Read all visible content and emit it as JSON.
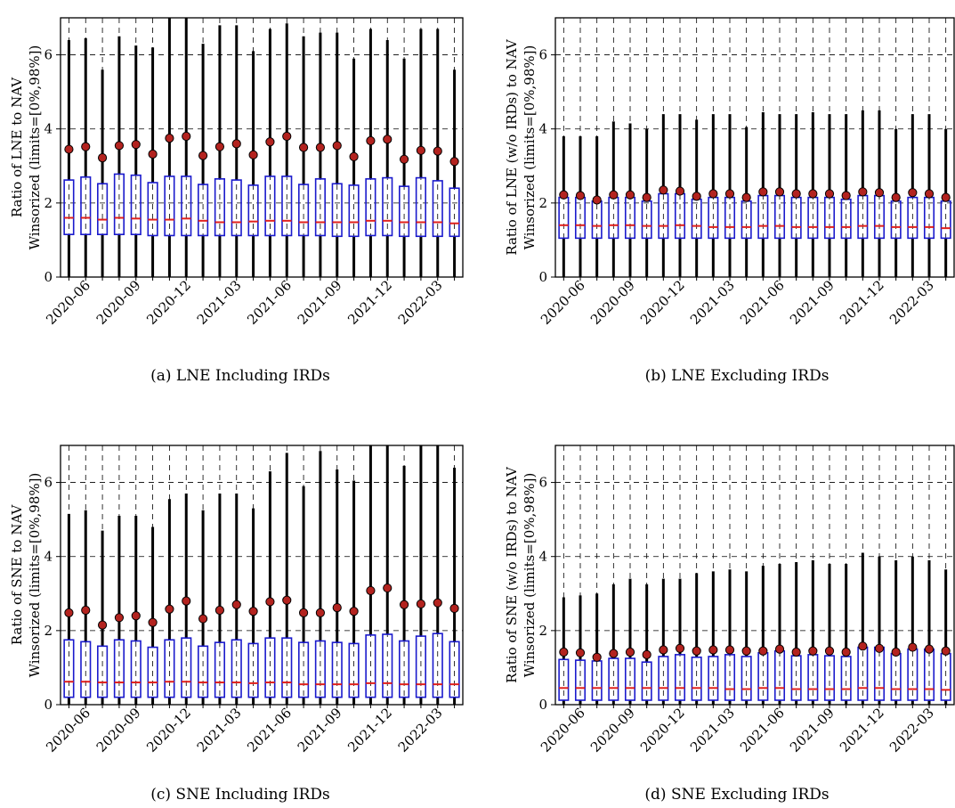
{
  "chart_data": [
    {
      "id": "a",
      "type": "box",
      "caption": "(a) LNE Including IRDs",
      "ylabel_line1": "Ratio of LNE to NAV",
      "ylabel_line2": "Winsorized (limits=[0%,98%])",
      "ylim": [
        0,
        7
      ],
      "yticks": [
        0,
        2,
        4,
        6
      ],
      "xtick_labels": [
        "2020-06",
        "2020-09",
        "2020-12",
        "2021-03",
        "2021-06",
        "2021-09",
        "2021-12",
        "2022-03"
      ],
      "xtick_index": [
        1,
        4,
        7,
        10,
        13,
        16,
        19,
        22
      ],
      "periods": [
        "2020-05",
        "2020-06",
        "2020-07",
        "2020-08",
        "2020-09",
        "2020-10",
        "2020-11",
        "2020-12",
        "2021-01",
        "2021-02",
        "2021-03",
        "2021-04",
        "2021-05",
        "2021-06",
        "2021-07",
        "2021-08",
        "2021-09",
        "2021-10",
        "2021-11",
        "2021-12",
        "2022-01",
        "2022-02",
        "2022-03",
        "2022-04"
      ],
      "q1": [
        1.15,
        1.15,
        1.15,
        1.15,
        1.15,
        1.12,
        1.12,
        1.12,
        1.12,
        1.12,
        1.12,
        1.12,
        1.12,
        1.12,
        1.12,
        1.12,
        1.1,
        1.1,
        1.12,
        1.12,
        1.1,
        1.1,
        1.1,
        1.1
      ],
      "median": [
        1.6,
        1.6,
        1.55,
        1.6,
        1.58,
        1.55,
        1.55,
        1.58,
        1.52,
        1.48,
        1.48,
        1.5,
        1.52,
        1.52,
        1.48,
        1.48,
        1.48,
        1.48,
        1.52,
        1.52,
        1.48,
        1.48,
        1.48,
        1.45
      ],
      "q3": [
        2.62,
        2.7,
        2.52,
        2.78,
        2.75,
        2.55,
        2.72,
        2.72,
        2.5,
        2.65,
        2.62,
        2.48,
        2.72,
        2.72,
        2.5,
        2.65,
        2.52,
        2.48,
        2.65,
        2.68,
        2.45,
        2.68,
        2.6,
        2.4
      ],
      "whisker_high": [
        6.4,
        6.45,
        5.6,
        6.5,
        6.25,
        6.2,
        7.0,
        7.0,
        6.3,
        6.8,
        6.8,
        6.1,
        6.7,
        6.85,
        6.5,
        6.6,
        6.6,
        5.9,
        6.7,
        6.4,
        5.9,
        6.7,
        6.7,
        5.6
      ],
      "mean": [
        3.45,
        3.52,
        3.22,
        3.55,
        3.58,
        3.32,
        3.75,
        3.8,
        3.28,
        3.52,
        3.6,
        3.3,
        3.65,
        3.8,
        3.5,
        3.5,
        3.55,
        3.25,
        3.68,
        3.72,
        3.18,
        3.42,
        3.4,
        3.12
      ]
    },
    {
      "id": "b",
      "type": "box",
      "caption": "(b) LNE Excluding IRDs",
      "ylabel_line1": "Ratio of LNE (w/o IRDs) to NAV",
      "ylabel_line2": "Winsorized (limits=[0%,98%])",
      "ylim": [
        0,
        7
      ],
      "yticks": [
        0,
        2,
        4,
        6
      ],
      "xtick_labels": [
        "2020-06",
        "2020-09",
        "2020-12",
        "2021-03",
        "2021-06",
        "2021-09",
        "2021-12",
        "2022-03"
      ],
      "xtick_index": [
        1,
        4,
        7,
        10,
        13,
        16,
        19,
        22
      ],
      "periods": [
        "2020-05",
        "2020-06",
        "2020-07",
        "2020-08",
        "2020-09",
        "2020-10",
        "2020-11",
        "2020-12",
        "2021-01",
        "2021-02",
        "2021-03",
        "2021-04",
        "2021-05",
        "2021-06",
        "2021-07",
        "2021-08",
        "2021-09",
        "2021-10",
        "2021-11",
        "2021-12",
        "2022-01",
        "2022-02",
        "2022-03",
        "2022-04"
      ],
      "q1": [
        1.05,
        1.05,
        1.05,
        1.05,
        1.05,
        1.05,
        1.05,
        1.05,
        1.05,
        1.05,
        1.05,
        1.05,
        1.05,
        1.05,
        1.05,
        1.05,
        1.05,
        1.05,
        1.05,
        1.05,
        1.05,
        1.05,
        1.05,
        1.05
      ],
      "median": [
        1.4,
        1.4,
        1.38,
        1.4,
        1.4,
        1.38,
        1.38,
        1.4,
        1.38,
        1.35,
        1.35,
        1.35,
        1.38,
        1.38,
        1.35,
        1.35,
        1.35,
        1.35,
        1.38,
        1.38,
        1.35,
        1.35,
        1.35,
        1.32
      ],
      "q3": [
        2.15,
        2.15,
        2.05,
        2.15,
        2.15,
        2.05,
        2.25,
        2.25,
        2.1,
        2.15,
        2.15,
        2.05,
        2.2,
        2.2,
        2.15,
        2.15,
        2.15,
        2.1,
        2.2,
        2.2,
        2.05,
        2.15,
        2.15,
        2.05
      ],
      "whisker_high": [
        3.8,
        3.8,
        3.8,
        4.2,
        4.15,
        4.0,
        4.4,
        4.4,
        4.25,
        4.4,
        4.4,
        4.05,
        4.45,
        4.4,
        4.4,
        4.45,
        4.4,
        4.4,
        4.5,
        4.5,
        4.0,
        4.4,
        4.4,
        4.0
      ],
      "mean": [
        2.22,
        2.2,
        2.08,
        2.22,
        2.22,
        2.15,
        2.35,
        2.32,
        2.18,
        2.25,
        2.25,
        2.15,
        2.3,
        2.3,
        2.25,
        2.25,
        2.25,
        2.2,
        2.3,
        2.28,
        2.15,
        2.28,
        2.25,
        2.15
      ]
    },
    {
      "id": "c",
      "type": "box",
      "caption": "(c) SNE Including IRDs",
      "ylabel_line1": "Ratio of SNE to NAV",
      "ylabel_line2": "Winsorized (limits=[0%,98%])",
      "ylim": [
        0,
        7
      ],
      "yticks": [
        0,
        2,
        4,
        6
      ],
      "xtick_labels": [
        "2020-06",
        "2020-09",
        "2020-12",
        "2021-03",
        "2021-06",
        "2021-09",
        "2021-12",
        "2022-03"
      ],
      "xtick_index": [
        1,
        4,
        7,
        10,
        13,
        16,
        19,
        22
      ],
      "periods": [
        "2020-05",
        "2020-06",
        "2020-07",
        "2020-08",
        "2020-09",
        "2020-10",
        "2020-11",
        "2020-12",
        "2021-01",
        "2021-02",
        "2021-03",
        "2021-04",
        "2021-05",
        "2021-06",
        "2021-07",
        "2021-08",
        "2021-09",
        "2021-10",
        "2021-11",
        "2021-12",
        "2022-01",
        "2022-02",
        "2022-03",
        "2022-04"
      ],
      "q1": [
        0.2,
        0.2,
        0.2,
        0.2,
        0.2,
        0.2,
        0.2,
        0.2,
        0.2,
        0.2,
        0.2,
        0.2,
        0.2,
        0.2,
        0.2,
        0.2,
        0.2,
        0.2,
        0.2,
        0.2,
        0.2,
        0.2,
        0.2,
        0.2
      ],
      "median": [
        0.62,
        0.62,
        0.6,
        0.6,
        0.6,
        0.6,
        0.62,
        0.62,
        0.6,
        0.6,
        0.6,
        0.58,
        0.6,
        0.6,
        0.55,
        0.55,
        0.55,
        0.55,
        0.58,
        0.58,
        0.55,
        0.55,
        0.55,
        0.55
      ],
      "q3": [
        1.75,
        1.7,
        1.58,
        1.75,
        1.72,
        1.55,
        1.75,
        1.8,
        1.58,
        1.68,
        1.75,
        1.65,
        1.8,
        1.8,
        1.68,
        1.72,
        1.68,
        1.65,
        1.88,
        1.9,
        1.72,
        1.85,
        1.92,
        1.7
      ],
      "whisker_high": [
        5.15,
        5.25,
        4.7,
        5.1,
        5.1,
        4.8,
        5.55,
        5.7,
        5.25,
        5.7,
        5.7,
        5.3,
        6.3,
        6.8,
        5.9,
        6.85,
        6.35,
        6.05,
        7.0,
        7.0,
        6.45,
        7.0,
        7.0,
        6.4
      ],
      "mean": [
        2.48,
        2.55,
        2.15,
        2.35,
        2.4,
        2.22,
        2.58,
        2.8,
        2.32,
        2.55,
        2.7,
        2.52,
        2.78,
        2.82,
        2.48,
        2.48,
        2.62,
        2.52,
        3.08,
        3.15,
        2.7,
        2.72,
        2.75,
        2.6
      ]
    },
    {
      "id": "d",
      "type": "box",
      "caption": "(d) SNE Excluding IRDs",
      "ylabel_line1": "Ratio of SNE (w/o IRDs) to NAV",
      "ylabel_line2": "Winsorized (limits=[0%,98%])",
      "ylim": [
        0,
        7
      ],
      "yticks": [
        0,
        2,
        4,
        6
      ],
      "xtick_labels": [
        "2020-06",
        "2020-09",
        "2020-12",
        "2021-03",
        "2021-06",
        "2021-09",
        "2021-12",
        "2022-03"
      ],
      "xtick_index": [
        1,
        4,
        7,
        10,
        13,
        16,
        19,
        22
      ],
      "periods": [
        "2020-05",
        "2020-06",
        "2020-07",
        "2020-08",
        "2020-09",
        "2020-10",
        "2020-11",
        "2020-12",
        "2021-01",
        "2021-02",
        "2021-03",
        "2021-04",
        "2021-05",
        "2021-06",
        "2021-07",
        "2021-08",
        "2021-09",
        "2021-10",
        "2021-11",
        "2021-12",
        "2022-01",
        "2022-02",
        "2022-03",
        "2022-04"
      ],
      "q1": [
        0.12,
        0.12,
        0.12,
        0.12,
        0.12,
        0.12,
        0.12,
        0.12,
        0.12,
        0.12,
        0.12,
        0.12,
        0.12,
        0.12,
        0.12,
        0.12,
        0.12,
        0.12,
        0.12,
        0.12,
        0.12,
        0.12,
        0.12,
        0.12
      ],
      "median": [
        0.45,
        0.45,
        0.45,
        0.45,
        0.45,
        0.45,
        0.45,
        0.45,
        0.45,
        0.45,
        0.42,
        0.42,
        0.45,
        0.45,
        0.42,
        0.42,
        0.42,
        0.42,
        0.45,
        0.45,
        0.42,
        0.42,
        0.42,
        0.4
      ],
      "q3": [
        1.22,
        1.2,
        1.18,
        1.25,
        1.25,
        1.15,
        1.3,
        1.35,
        1.28,
        1.3,
        1.35,
        1.3,
        1.4,
        1.45,
        1.32,
        1.35,
        1.32,
        1.3,
        1.55,
        1.55,
        1.38,
        1.5,
        1.5,
        1.38
      ],
      "whisker_high": [
        2.9,
        2.95,
        3.0,
        3.25,
        3.4,
        3.25,
        3.4,
        3.4,
        3.55,
        3.6,
        3.65,
        3.6,
        3.75,
        3.8,
        3.85,
        3.9,
        3.8,
        3.8,
        4.1,
        4.0,
        3.9,
        4.0,
        3.9,
        3.65
      ],
      "mean": [
        1.42,
        1.4,
        1.28,
        1.38,
        1.42,
        1.35,
        1.48,
        1.52,
        1.45,
        1.48,
        1.48,
        1.45,
        1.45,
        1.5,
        1.42,
        1.45,
        1.45,
        1.42,
        1.58,
        1.52,
        1.42,
        1.55,
        1.5,
        1.45
      ]
    }
  ]
}
